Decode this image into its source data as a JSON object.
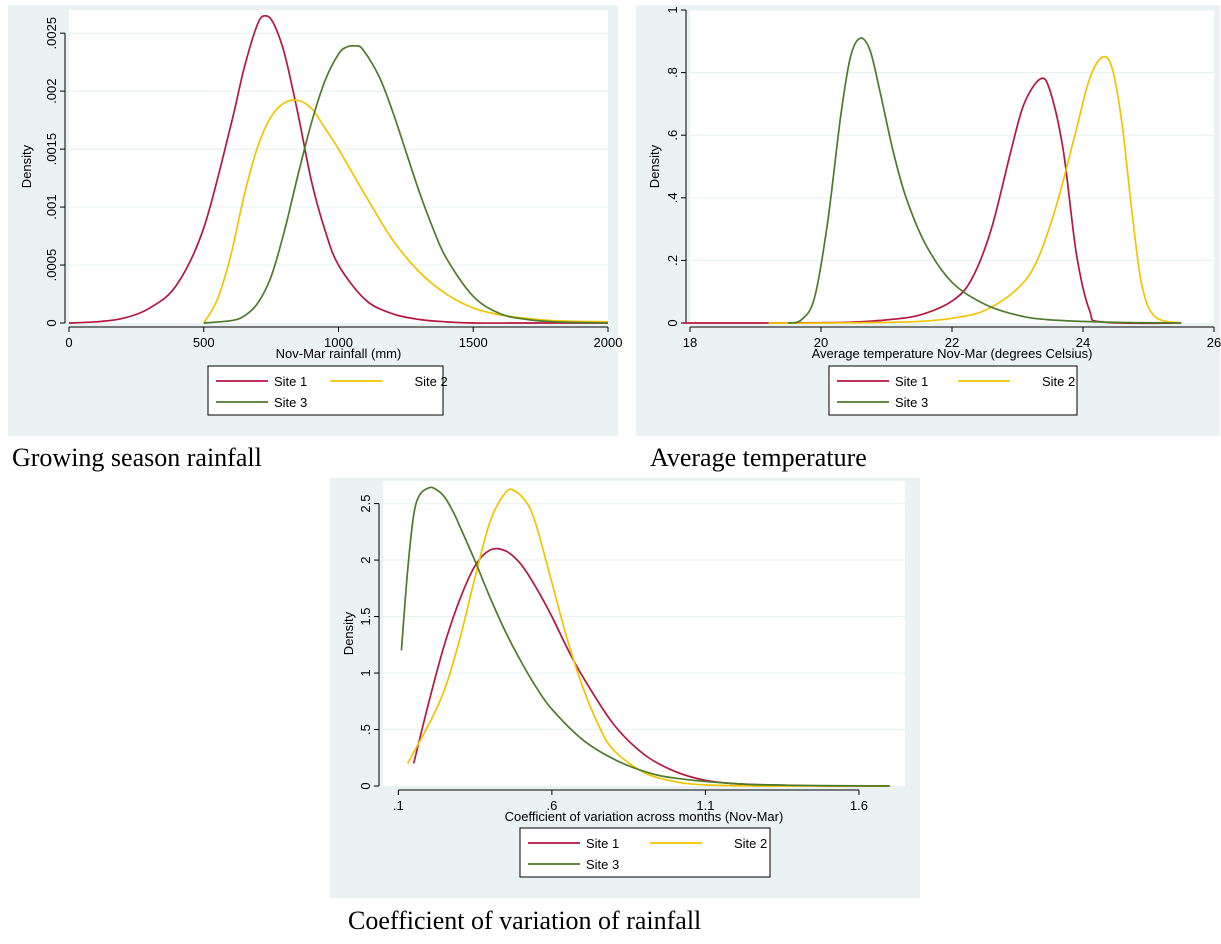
{
  "chart_data": [
    {
      "type": "line",
      "caption": "Growing season rainfall",
      "xlabel": "Nov-Mar rainfall (mm)",
      "ylabel": "Density",
      "xlim": [
        0,
        2000
      ],
      "ylim": [
        0,
        0.0027
      ],
      "xticks": [
        0,
        500,
        1000,
        1500,
        2000
      ],
      "xtick_labels": [
        "0",
        "500",
        "1000",
        "1500",
        "2000"
      ],
      "yticks": [
        0,
        0.0005,
        0.001,
        0.0015,
        0.002,
        0.0025
      ],
      "ytick_labels": [
        "0",
        ".0005",
        ".001",
        ".0015",
        ".002",
        ".0025"
      ],
      "grid": true,
      "legend_position": "bottom",
      "series": [
        {
          "name": "Site 1",
          "color": "#b5163f",
          "x": [
            0,
            100,
            200,
            300,
            400,
            500,
            600,
            650,
            700,
            730,
            760,
            800,
            850,
            900,
            950,
            1000,
            1100,
            1200,
            1300,
            1400,
            1500,
            1700,
            2000
          ],
          "y": [
            0,
            1e-05,
            4e-05,
            0.00013,
            0.00033,
            0.00082,
            0.0017,
            0.0022,
            0.00258,
            0.00265,
            0.00258,
            0.00232,
            0.0018,
            0.00122,
            0.0008,
            0.0005,
            0.0002,
            8e-05,
            3e-05,
            1e-05,
            0,
            0,
            0
          ]
        },
        {
          "name": "Site 2",
          "color": "#f2c400",
          "x": [
            500,
            550,
            600,
            650,
            700,
            750,
            800,
            850,
            900,
            950,
            1000,
            1100,
            1200,
            1300,
            1400,
            1500,
            1600,
            1700,
            1800,
            2000
          ],
          "y": [
            0,
            0.0002,
            0.00058,
            0.0011,
            0.00152,
            0.00178,
            0.0019,
            0.00192,
            0.00185,
            0.00168,
            0.0015,
            0.0011,
            0.00072,
            0.00044,
            0.00025,
            0.00013,
            7e-05,
            4e-05,
            2e-05,
            1e-05
          ]
        },
        {
          "name": "Site 3",
          "color": "#4e7a2b",
          "x": [
            500,
            600,
            650,
            700,
            750,
            800,
            850,
            900,
            950,
            1000,
            1030,
            1060,
            1090,
            1150,
            1200,
            1250,
            1300,
            1350,
            1400,
            1500,
            1600,
            1700,
            1800,
            2000
          ],
          "y": [
            0,
            2e-05,
            6e-05,
            0.00017,
            0.0004,
            0.0008,
            0.00128,
            0.00173,
            0.00209,
            0.00232,
            0.00238,
            0.00239,
            0.00236,
            0.00213,
            0.00183,
            0.00148,
            0.00113,
            0.00082,
            0.00056,
            0.00023,
            8e-05,
            3e-05,
            1e-05,
            0
          ]
        }
      ]
    },
    {
      "type": "line",
      "caption": "Average temperature",
      "xlabel": "Average temperature Nov-Mar (degrees Celsius)",
      "ylabel": "Density",
      "xlim": [
        18,
        26
      ],
      "ylim": [
        0,
        1
      ],
      "xticks": [
        18,
        20,
        22,
        24,
        26
      ],
      "xtick_labels": [
        "18",
        "20",
        "22",
        "24",
        "26"
      ],
      "yticks": [
        0,
        0.2,
        0.4,
        0.6,
        0.8,
        1
      ],
      "ytick_labels": [
        "0",
        ".2",
        ".4",
        ".6",
        ".8",
        "1"
      ],
      "grid": true,
      "legend_position": "bottom",
      "series": [
        {
          "name": "Site 1",
          "color": "#b5163f",
          "x": [
            17.9,
            19,
            20,
            20.5,
            21,
            21.5,
            22,
            22.3,
            22.6,
            22.9,
            23.1,
            23.35,
            23.5,
            23.7,
            23.9,
            24.1,
            24.3,
            25.5
          ],
          "y": [
            0,
            0,
            0.001,
            0.003,
            0.01,
            0.025,
            0.07,
            0.14,
            0.3,
            0.55,
            0.7,
            0.78,
            0.74,
            0.55,
            0.22,
            0.04,
            0.003,
            0
          ]
        },
        {
          "name": "Site 2",
          "color": "#f2c400",
          "x": [
            19.2,
            20,
            21,
            21.5,
            22,
            22.5,
            23,
            23.3,
            23.6,
            23.9,
            24.1,
            24.3,
            24.45,
            24.6,
            24.75,
            24.9,
            25.1,
            25.5
          ],
          "y": [
            0,
            0,
            0.002,
            0.005,
            0.015,
            0.04,
            0.11,
            0.2,
            0.38,
            0.62,
            0.78,
            0.85,
            0.81,
            0.63,
            0.35,
            0.12,
            0.02,
            0
          ]
        },
        {
          "name": "Site 3",
          "color": "#4e7a2b",
          "x": [
            19.5,
            19.7,
            19.9,
            20.1,
            20.3,
            20.45,
            20.6,
            20.75,
            20.9,
            21.1,
            21.3,
            21.6,
            22,
            22.5,
            23,
            23.5,
            24.5,
            25.5
          ],
          "y": [
            0,
            0.01,
            0.08,
            0.32,
            0.66,
            0.85,
            0.91,
            0.87,
            0.74,
            0.55,
            0.4,
            0.25,
            0.13,
            0.06,
            0.025,
            0.01,
            0.002,
            0
          ]
        }
      ]
    },
    {
      "type": "line",
      "caption": "Coefficient of variation of rainfall",
      "xlabel": "Coefficient of variation across months (Nov-Mar)",
      "ylabel": "Density",
      "xlim": [
        0.05,
        1.75
      ],
      "ylim": [
        0,
        2.7
      ],
      "xticks": [
        0.1,
        0.6,
        1.1,
        1.6
      ],
      "xtick_labels": [
        ".1",
        ".6",
        "1.1",
        "1.6"
      ],
      "yticks": [
        0,
        0.5,
        1,
        1.5,
        2,
        2.5
      ],
      "ytick_labels": [
        "0",
        ".5",
        "1",
        "1.5",
        "2",
        "2.5"
      ],
      "grid": true,
      "legend_position": "bottom",
      "series": [
        {
          "name": "Site 1",
          "color": "#b5163f",
          "x": [
            0.15,
            0.2,
            0.25,
            0.3,
            0.35,
            0.4,
            0.45,
            0.5,
            0.55,
            0.6,
            0.65,
            0.7,
            0.8,
            0.9,
            1.0,
            1.1,
            1.2,
            1.3,
            1.5,
            1.7
          ],
          "y": [
            0.2,
            0.75,
            1.25,
            1.65,
            1.95,
            2.09,
            2.08,
            1.96,
            1.75,
            1.5,
            1.22,
            0.97,
            0.55,
            0.28,
            0.13,
            0.05,
            0.02,
            0.01,
            0,
            0
          ]
        },
        {
          "name": "Site 2",
          "color": "#f2c400",
          "x": [
            0.13,
            0.2,
            0.25,
            0.3,
            0.35,
            0.4,
            0.45,
            0.48,
            0.52,
            0.55,
            0.6,
            0.65,
            0.7,
            0.75,
            0.8,
            0.9,
            1.0,
            1.1,
            1.3,
            1.7
          ],
          "y": [
            0.2,
            0.55,
            0.85,
            1.3,
            1.85,
            2.35,
            2.6,
            2.61,
            2.5,
            2.3,
            1.8,
            1.3,
            0.88,
            0.55,
            0.32,
            0.12,
            0.04,
            0.01,
            0,
            0
          ]
        },
        {
          "name": "Site 3",
          "color": "#4e7a2b",
          "x": [
            0.11,
            0.13,
            0.15,
            0.17,
            0.2,
            0.22,
            0.25,
            0.28,
            0.3,
            0.35,
            0.4,
            0.45,
            0.5,
            0.55,
            0.6,
            0.7,
            0.8,
            0.9,
            1.0,
            1.2,
            1.4,
            1.7
          ],
          "y": [
            1.2,
            1.9,
            2.4,
            2.58,
            2.64,
            2.63,
            2.56,
            2.42,
            2.3,
            1.99,
            1.66,
            1.36,
            1.1,
            0.87,
            0.68,
            0.41,
            0.24,
            0.13,
            0.07,
            0.02,
            0.005,
            0
          ]
        }
      ]
    }
  ]
}
